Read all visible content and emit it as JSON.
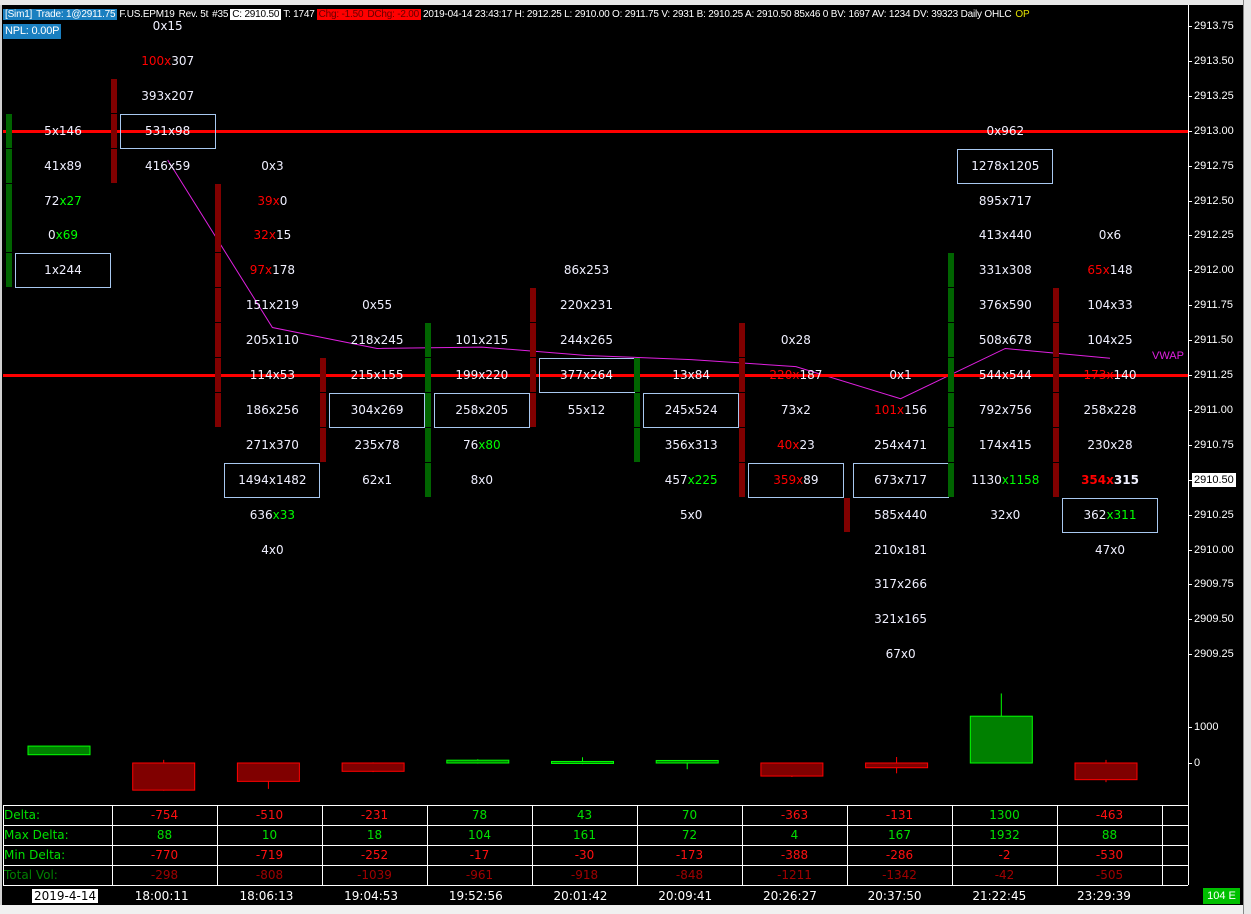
{
  "header": {
    "account": "[Sim1]",
    "trade": "Trade: 1@2911.75",
    "symbol": "F.US.EPM19",
    "rev": "Rev. 5t",
    "num": "#35",
    "close": "C: 2910.50",
    "ticks": "T: 1747",
    "chg": "Chg: -1.50",
    "dchg": "DChg: -2.00",
    "rest": "2019-04-14 23:43:17 H: 2912.25 L: 2910.00 O: 2911.75 V: 2931 B: 2910.25 A: 2910.50 85x46 0 BV: 1697 AV: 1234 DV: 39323 Daily OHLC",
    "op": "OP",
    "npl": "NPL: 0.00P"
  },
  "colors": {
    "bull": "#006400",
    "bear": "#800000",
    "bull_bright": "#00ff00",
    "bear_bright": "#ff0000",
    "vwap": "#e020e0",
    "level_line": "#ff0000",
    "box": "#a8c8f0"
  },
  "price_axis": {
    "ticks": [
      "2913.75",
      "2913.50",
      "2913.25",
      "2913.00",
      "2912.75",
      "2912.50",
      "2912.25",
      "2912.00",
      "2911.75",
      "2911.50",
      "2911.25",
      "2911.00",
      "2910.75",
      "2910.50",
      "2910.25",
      "2910.00",
      "2909.75",
      "2909.50",
      "2909.25"
    ],
    "current": "2910.50",
    "volume_ticks": [
      "1000",
      "0"
    ]
  },
  "level_lines": [
    2913.0,
    2911.25
  ],
  "vwap": {
    "label": "VWAP",
    "values": [
      2912.79,
      2911.59,
      2911.44,
      2911.45,
      2911.39,
      2911.36,
      2911.31,
      2911.08,
      2911.44,
      2911.37
    ]
  },
  "columns": [
    {
      "body": [
        2913.0,
        2912.0
      ],
      "dir": "up",
      "candle": {
        "o": 230,
        "h": 470,
        "l": 230,
        "c": 470
      },
      "cells": [
        {
          "p": 2913.0,
          "b": "5",
          "a": "146"
        },
        {
          "p": 2912.75,
          "b": "41",
          "a": "89"
        },
        {
          "p": 2912.5,
          "b": "72",
          "a": "27",
          "ac": "g"
        },
        {
          "p": 2912.25,
          "b": "0",
          "a": "69",
          "ac": "g"
        },
        {
          "p": 2912.0,
          "b": "1",
          "a": "244",
          "box": true
        }
      ]
    },
    {
      "body": [
        2913.25,
        2912.75
      ],
      "dir": "down",
      "candle": {
        "o": 0,
        "h": 88,
        "l": -770,
        "c": -754
      },
      "cells": [
        {
          "p": 2913.75,
          "b": "0",
          "a": "15"
        },
        {
          "p": 2913.5,
          "b": "100",
          "a": "307",
          "bc": "r"
        },
        {
          "p": 2913.25,
          "b": "393",
          "a": "207"
        },
        {
          "p": 2913.0,
          "b": "531",
          "a": "98",
          "box": true
        },
        {
          "p": 2912.75,
          "b": "416",
          "a": "59"
        }
      ]
    },
    {
      "body": [
        2912.5,
        2911.0
      ],
      "dir": "down",
      "candle": {
        "o": 0,
        "h": 10,
        "l": -719,
        "c": -510
      },
      "cells": [
        {
          "p": 2912.75,
          "b": "0",
          "a": "3"
        },
        {
          "p": 2912.5,
          "b": "39",
          "a": "0",
          "bc": "r"
        },
        {
          "p": 2912.25,
          "b": "32",
          "a": "15",
          "bc": "r"
        },
        {
          "p": 2912.0,
          "b": "97",
          "a": "178",
          "bc": "r"
        },
        {
          "p": 2911.75,
          "b": "151",
          "a": "219"
        },
        {
          "p": 2911.5,
          "b": "205",
          "a": "110"
        },
        {
          "p": 2911.25,
          "b": "114",
          "a": "53"
        },
        {
          "p": 2911.0,
          "b": "186",
          "a": "256"
        },
        {
          "p": 2910.75,
          "b": "271",
          "a": "370"
        },
        {
          "p": 2910.5,
          "b": "1494",
          "a": "1482",
          "box": true
        },
        {
          "p": 2910.25,
          "b": "636",
          "a": "33",
          "ac": "g"
        },
        {
          "p": 2910.0,
          "b": "4",
          "a": "0"
        }
      ]
    },
    {
      "body": [
        2911.25,
        2910.75
      ],
      "dir": "down",
      "candle": {
        "o": 0,
        "h": 18,
        "l": -252,
        "c": -231
      },
      "cells": [
        {
          "p": 2911.75,
          "b": "0",
          "a": "55"
        },
        {
          "p": 2911.5,
          "b": "218",
          "a": "245"
        },
        {
          "p": 2911.25,
          "b": "215",
          "a": "155"
        },
        {
          "p": 2911.0,
          "b": "304",
          "a": "269",
          "box": true
        },
        {
          "p": 2910.75,
          "b": "235",
          "a": "78"
        },
        {
          "p": 2910.5,
          "b": "62",
          "a": "1"
        }
      ]
    },
    {
      "body": [
        2911.5,
        2910.5
      ],
      "dir": "up",
      "candle": {
        "o": 0,
        "h": 104,
        "l": -17,
        "c": 78
      },
      "cells": [
        {
          "p": 2911.5,
          "b": "101",
          "a": "215"
        },
        {
          "p": 2911.25,
          "b": "199",
          "a": "220"
        },
        {
          "p": 2911.0,
          "b": "258",
          "a": "205",
          "box": true
        },
        {
          "p": 2910.75,
          "b": "76",
          "a": "80",
          "ac": "g"
        },
        {
          "p": 2910.5,
          "b": "8",
          "a": "0"
        }
      ]
    },
    {
      "body": [
        2911.75,
        2911.0
      ],
      "dir": "down",
      "candle": {
        "o": 0,
        "h": 161,
        "l": -30,
        "c": 43
      },
      "cells": [
        {
          "p": 2912.0,
          "b": "86",
          "a": "253"
        },
        {
          "p": 2911.75,
          "b": "220",
          "a": "231"
        },
        {
          "p": 2911.5,
          "b": "244",
          "a": "265"
        },
        {
          "p": 2911.25,
          "b": "377",
          "a": "264",
          "box": true
        },
        {
          "p": 2911.0,
          "b": "55",
          "a": "12"
        }
      ]
    },
    {
      "body": [
        2911.25,
        2910.75
      ],
      "dir": "up",
      "candle": {
        "o": 0,
        "h": 72,
        "l": -173,
        "c": 70
      },
      "cells": [
        {
          "p": 2911.25,
          "b": "13",
          "a": "84"
        },
        {
          "p": 2911.0,
          "b": "245",
          "a": "524",
          "box": true
        },
        {
          "p": 2910.75,
          "b": "356",
          "a": "313"
        },
        {
          "p": 2910.5,
          "b": "457",
          "a": "225",
          "ac": "g"
        },
        {
          "p": 2910.25,
          "b": "5",
          "a": "0"
        }
      ]
    },
    {
      "body": [
        2911.5,
        2910.5
      ],
      "dir": "down",
      "candle": {
        "o": 0,
        "h": 4,
        "l": -388,
        "c": -363
      },
      "cells": [
        {
          "p": 2911.5,
          "b": "0",
          "a": "28"
        },
        {
          "p": 2911.25,
          "b": "220",
          "a": "187",
          "bc": "r"
        },
        {
          "p": 2911.0,
          "b": "73",
          "a": "2"
        },
        {
          "p": 2910.75,
          "b": "40",
          "a": "23",
          "bc": "r"
        },
        {
          "p": 2910.5,
          "b": "359",
          "a": "89",
          "bc": "r",
          "box": true
        }
      ]
    },
    {
      "body": [
        2910.25,
        2910.25
      ],
      "dir": "down",
      "candle": {
        "o": 0,
        "h": 167,
        "l": -286,
        "c": -131
      },
      "cells": [
        {
          "p": 2911.25,
          "b": "0",
          "a": "1"
        },
        {
          "p": 2911.0,
          "b": "101",
          "a": "156",
          "bc": "r"
        },
        {
          "p": 2910.75,
          "b": "254",
          "a": "471"
        },
        {
          "p": 2910.5,
          "b": "673",
          "a": "717",
          "box": true
        },
        {
          "p": 2910.25,
          "b": "585",
          "a": "440"
        },
        {
          "p": 2910.0,
          "b": "210",
          "a": "181"
        },
        {
          "p": 2909.75,
          "b": "317",
          "a": "266"
        },
        {
          "p": 2909.5,
          "b": "321",
          "a": "165"
        },
        {
          "p": 2909.25,
          "b": "67",
          "a": "0"
        }
      ]
    },
    {
      "body": [
        2912.0,
        2910.5
      ],
      "dir": "up",
      "candle": {
        "o": 0,
        "h": 1932,
        "l": -2,
        "c": 1300
      },
      "cells": [
        {
          "p": 2913.0,
          "b": "0",
          "a": "962"
        },
        {
          "p": 2912.75,
          "b": "1278",
          "a": "1205",
          "box": true
        },
        {
          "p": 2912.5,
          "b": "895",
          "a": "717"
        },
        {
          "p": 2912.25,
          "b": "413",
          "a": "440"
        },
        {
          "p": 2912.0,
          "b": "331",
          "a": "308"
        },
        {
          "p": 2911.75,
          "b": "376",
          "a": "590"
        },
        {
          "p": 2911.5,
          "b": "508",
          "a": "678"
        },
        {
          "p": 2911.25,
          "b": "544",
          "a": "544"
        },
        {
          "p": 2911.0,
          "b": "792",
          "a": "756"
        },
        {
          "p": 2910.75,
          "b": "174",
          "a": "415"
        },
        {
          "p": 2910.5,
          "b": "1130",
          "a": "1158",
          "ac": "g"
        },
        {
          "p": 2910.25,
          "b": "32",
          "a": "0"
        }
      ]
    },
    {
      "body": [
        2911.75,
        2910.5
      ],
      "dir": "down",
      "candle": {
        "o": 0,
        "h": 88,
        "l": -530,
        "c": -463
      },
      "cells": [
        {
          "p": 2912.25,
          "b": "0",
          "a": "6"
        },
        {
          "p": 2912.0,
          "b": "65",
          "a": "148",
          "bc": "r"
        },
        {
          "p": 2911.75,
          "b": "104",
          "a": "33"
        },
        {
          "p": 2911.5,
          "b": "104",
          "a": "25"
        },
        {
          "p": 2911.25,
          "b": "173",
          "a": "140",
          "bc": "r"
        },
        {
          "p": 2911.0,
          "b": "258",
          "a": "228"
        },
        {
          "p": 2910.75,
          "b": "230",
          "a": "28"
        },
        {
          "p": 2910.5,
          "b": "354",
          "a": "315",
          "bc": "r",
          "bold": true
        },
        {
          "p": 2910.25,
          "b": "362",
          "a": "311",
          "ac": "g",
          "box": true
        },
        {
          "p": 2910.0,
          "b": "47",
          "a": "0"
        }
      ]
    }
  ],
  "table": {
    "rows": [
      {
        "label": "Delta:",
        "values": [
          "-754",
          "-510",
          "-231",
          "78",
          "43",
          "70",
          "-363",
          "-131",
          "1300",
          "-463"
        ]
      },
      {
        "label": "Max Delta:",
        "values": [
          "88",
          "10",
          "18",
          "104",
          "161",
          "72",
          "4",
          "167",
          "1932",
          "88"
        ]
      },
      {
        "label": "Min Delta:",
        "values": [
          "-770",
          "-719",
          "-252",
          "-17",
          "-30",
          "-173",
          "-388",
          "-286",
          "-2",
          "-530"
        ]
      },
      {
        "label": "Total Vol:",
        "values": [
          "-298",
          "-808",
          "-1039",
          "-961",
          "-918",
          "-848",
          "-1211",
          "-1342",
          "-42",
          "-505"
        ]
      }
    ]
  },
  "time_axis": {
    "date": "2019-4-14",
    "times": [
      "18:00:11",
      "18:06:13",
      "19:04:53",
      "19:52:56",
      "20:01:42",
      "20:09:41",
      "20:26:27",
      "20:37:50",
      "21:22:45",
      "23:29:39"
    ]
  },
  "status_badge": "104 E"
}
